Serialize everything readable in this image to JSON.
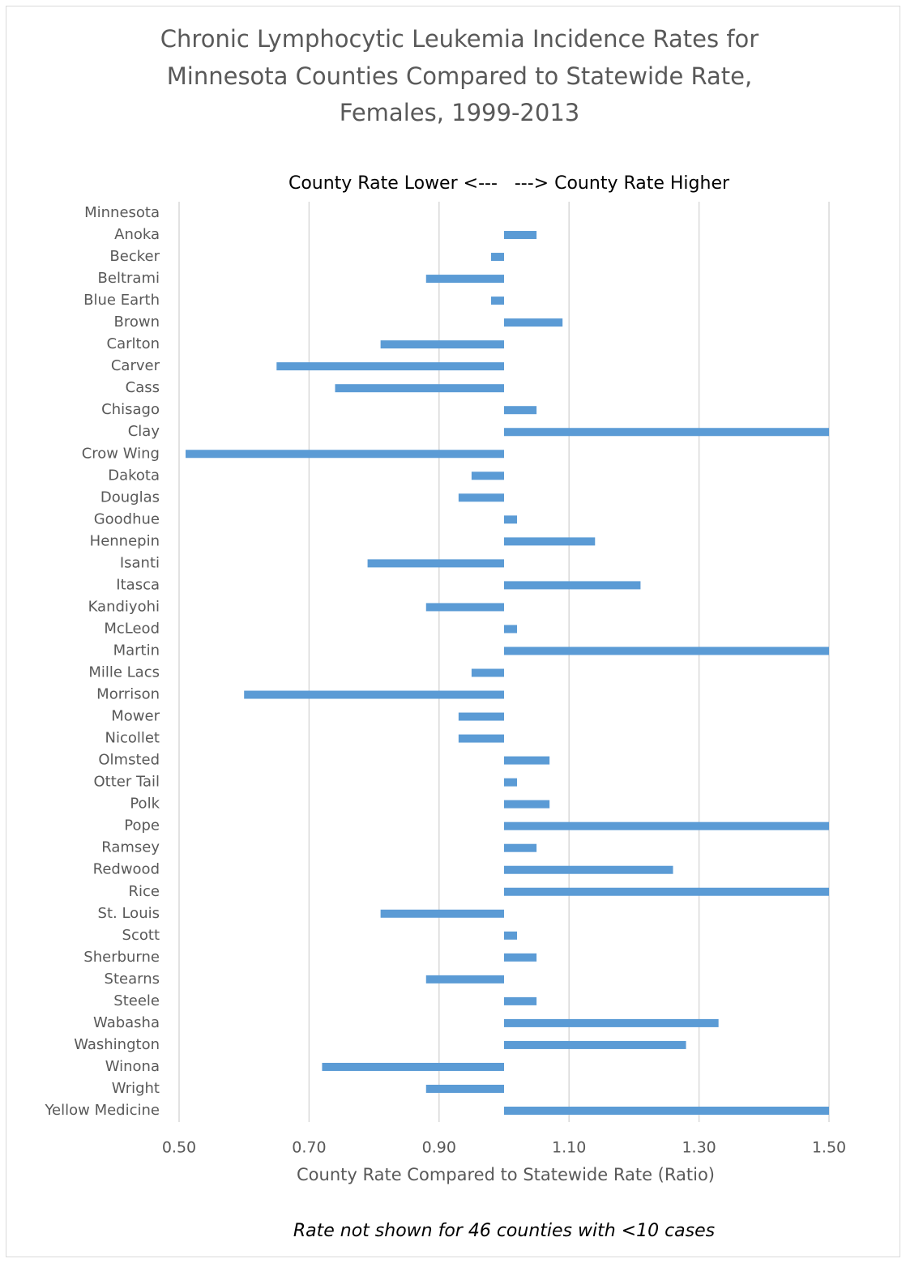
{
  "chart_data": {
    "type": "bar",
    "orientation": "horizontal",
    "title": [
      "Chronic Lymphocytic Leukemia Incidence Rates for",
      "Minnesota Counties Compared to Statewide Rate,",
      "Females, 1999-2013"
    ],
    "annotation": "County Rate Lower <---   ---> County Rate Higher",
    "x_label": "County Rate Compared to Statewide Rate (Ratio)",
    "footnote": "Rate not shown for 46 counties with <10 cases",
    "categories": [
      "Minnesota",
      "Anoka",
      "Becker",
      "Beltrami",
      "Blue Earth",
      "Brown",
      "Carlton",
      "Carver",
      "Cass",
      "Chisago",
      "Clay",
      "Crow Wing",
      "Dakota",
      "Douglas",
      "Goodhue",
      "Hennepin",
      "Isanti",
      "Itasca",
      "Kandiyohi",
      "McLeod",
      "Martin",
      "Mille Lacs",
      "Morrison",
      "Mower",
      "Nicollet",
      "Olmsted",
      "Otter Tail",
      "Polk",
      "Pope",
      "Ramsey",
      "Redwood",
      "Rice",
      "St. Louis",
      "Scott",
      "Sherburne",
      "Stearns",
      "Steele",
      "Wabasha",
      "Washington",
      "Winona",
      "Wright",
      "Yellow Medicine"
    ],
    "values": [
      1.0,
      1.05,
      0.98,
      0.88,
      0.98,
      1.09,
      0.81,
      0.65,
      0.74,
      1.05,
      1.5,
      0.51,
      0.95,
      0.93,
      1.02,
      1.14,
      0.79,
      1.21,
      0.88,
      1.02,
      1.5,
      0.95,
      0.6,
      0.93,
      0.93,
      1.07,
      1.02,
      1.07,
      1.5,
      1.05,
      1.26,
      1.5,
      0.81,
      1.02,
      1.05,
      0.88,
      1.05,
      1.33,
      1.28,
      0.72,
      0.88,
      1.5
    ],
    "baseline": 1,
    "color": "#5b9bd5",
    "xlim": [
      0.5,
      1.5
    ],
    "xticks": [
      {
        "value": 0.5,
        "label": "0.50"
      },
      {
        "value": 0.7,
        "label": "0.70"
      },
      {
        "value": 0.9,
        "label": "0.90"
      },
      {
        "value": 1.1,
        "label": "1.10"
      },
      {
        "value": 1.3,
        "label": "1.30"
      },
      {
        "value": 1.5,
        "label": "1.50"
      }
    ],
    "grid": true
  }
}
